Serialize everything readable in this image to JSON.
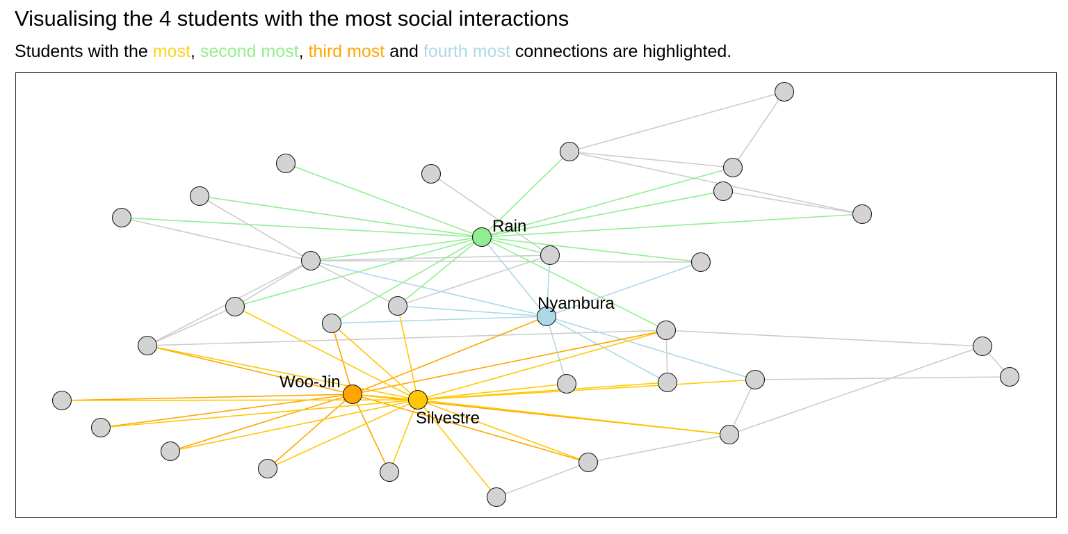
{
  "title": "Visualising the 4 students with the most social interactions",
  "subtitle": {
    "prefix": "Students with the ",
    "most": "most",
    "sep1": ", ",
    "second": "second most",
    "sep2": ", ",
    "third": "third most",
    "and": " and ",
    "fourth": "fourth most",
    "suffix": " connections are highlighted."
  },
  "colors": {
    "most": "#ffc800",
    "second": "#90ee90",
    "third": "#ffa500",
    "fourth": "#add8e6",
    "other_node": "#d3d3d3",
    "other_edge": "#cccccc"
  },
  "labels": {
    "rain": "Rain",
    "nyambura": "Nyambura",
    "woojin": "Woo-Jin",
    "silvestre": "Silvestre"
  }
}
